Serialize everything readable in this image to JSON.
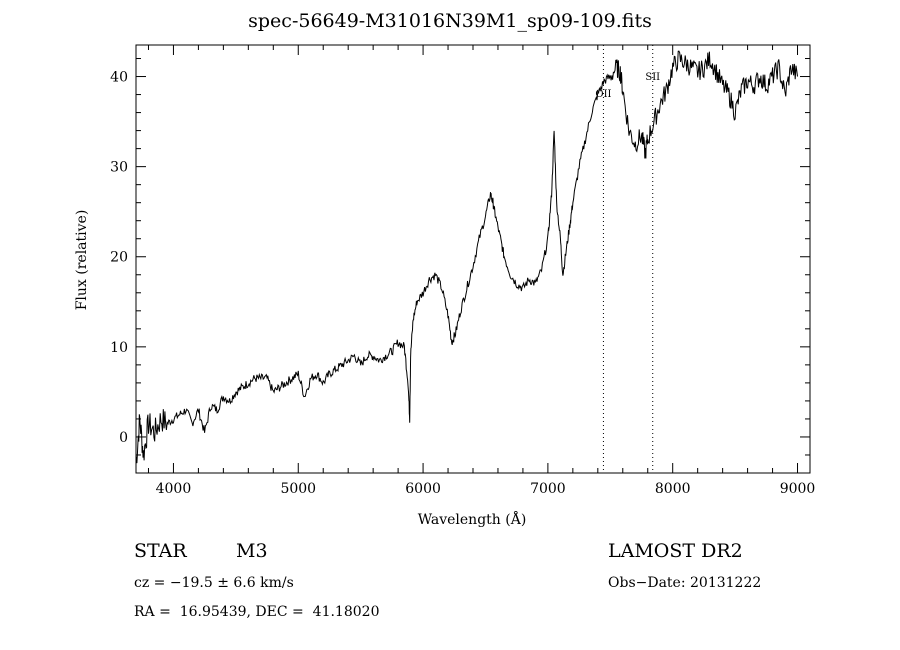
{
  "chart_data": {
    "type": "line",
    "title": "spec-56649-M31016N39M1_sp09-109.fits",
    "xlabel": "Wavelength (Å)",
    "ylabel": "Flux (relative)",
    "xlim": [
      3700,
      9100
    ],
    "ylim": [
      -4,
      43.5
    ],
    "xticks": [
      4000,
      5000,
      6000,
      7000,
      8000,
      9000
    ],
    "yticks": [
      0,
      10,
      20,
      30,
      40
    ],
    "grid": false,
    "series": [
      {
        "x": [
          3700,
          3730,
          3760,
          3800,
          3850,
          3900,
          3950,
          4000,
          4050,
          4100,
          4150,
          4200,
          4250,
          4300,
          4350,
          4400,
          4450,
          4500,
          4550,
          4600,
          4650,
          4700,
          4750,
          4800,
          4850,
          4900,
          4950,
          5000,
          5050,
          5100,
          5150,
          5200,
          5250,
          5300,
          5350,
          5400,
          5450,
          5500,
          5550,
          5600,
          5650,
          5700,
          5750,
          5800,
          5850,
          5880,
          5893,
          5900,
          5920,
          5950,
          6000,
          6050,
          6100,
          6150,
          6200,
          6230,
          6260,
          6300,
          6350,
          6400,
          6450,
          6500,
          6540,
          6560,
          6580,
          6620,
          6650,
          6700,
          6750,
          6800,
          6850,
          6900,
          6950,
          7000,
          7030,
          7050,
          7070,
          7100,
          7120,
          7150,
          7180,
          7200,
          7250,
          7300,
          7350,
          7400,
          7450,
          7500,
          7550,
          7580,
          7600,
          7650,
          7700,
          7750,
          7780,
          7800,
          7850,
          7900,
          7950,
          8000,
          8050,
          8100,
          8150,
          8200,
          8250,
          8300,
          8350,
          8400,
          8450,
          8500,
          8550,
          8600,
          8650,
          8700,
          8750,
          8800,
          8850,
          8900,
          8950,
          9000
        ],
        "y": [
          -3.0,
          2.0,
          -2.0,
          1.5,
          0.5,
          2.0,
          1.5,
          2.0,
          2.5,
          3.0,
          1.5,
          3.0,
          0.5,
          3.5,
          3.0,
          4.5,
          4.0,
          5.0,
          5.5,
          6.0,
          6.5,
          6.5,
          6.5,
          5.0,
          5.5,
          6.0,
          6.5,
          7.0,
          4.5,
          6.5,
          7.0,
          6.0,
          7.0,
          7.5,
          8.0,
          8.5,
          9.0,
          8.0,
          9.0,
          9.0,
          8.5,
          9.0,
          9.5,
          10.5,
          10.0,
          6.0,
          2.0,
          9.0,
          13.0,
          15.0,
          16.0,
          17.5,
          18.0,
          16.5,
          13.5,
          10.5,
          11.5,
          14.0,
          16.5,
          19.0,
          22.0,
          24.5,
          27.0,
          26.0,
          24.5,
          22.0,
          20.0,
          18.0,
          17.0,
          16.5,
          17.5,
          17.0,
          18.5,
          22.0,
          27.0,
          34.0,
          26.0,
          22.0,
          18.0,
          21.0,
          24.0,
          26.0,
          30.0,
          33.0,
          36.0,
          38.0,
          39.5,
          40.0,
          41.0,
          40.5,
          38.5,
          34.0,
          32.5,
          33.5,
          31.5,
          33.0,
          35.0,
          37.0,
          38.5,
          41.0,
          42.0,
          41.5,
          41.0,
          40.5,
          41.0,
          42.0,
          40.5,
          39.0,
          38.0,
          36.0,
          38.5,
          39.5,
          39.0,
          40.0,
          39.0,
          40.0,
          41.0,
          38.0,
          41.0,
          40.0
        ]
      }
    ],
    "lines": [
      {
        "x": 7445,
        "label": "OII"
      },
      {
        "x": 7840,
        "label": "SII"
      }
    ]
  },
  "info": {
    "class": "STAR",
    "subclass": "M3",
    "survey": "LAMOST DR2",
    "cz": "cz = −19.5 ± 6.6 km/s",
    "obsdate": "Obs−Date: 20131222",
    "radec": "RA =  16.95439, DEC =  41.18020"
  }
}
